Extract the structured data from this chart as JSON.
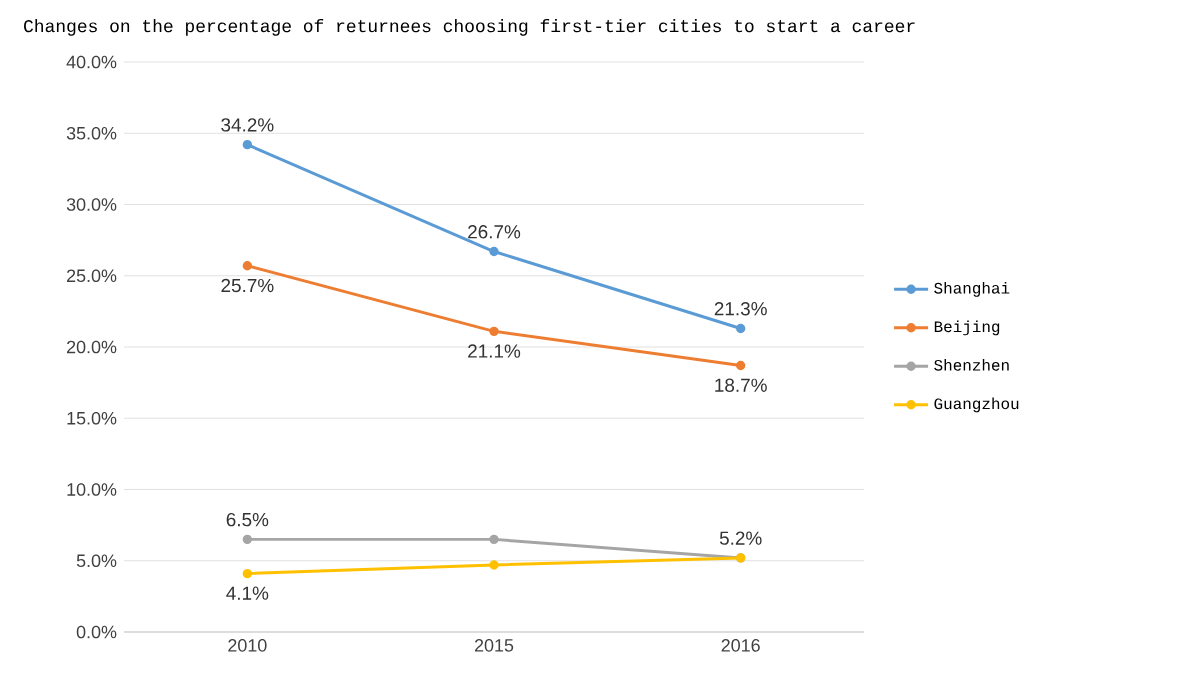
{
  "chart_data": {
    "type": "line",
    "title": "Changes on the percentage of returnees choosing first-tier cities to start a career",
    "categories": [
      "2010",
      "2015",
      "2016"
    ],
    "series": [
      {
        "name": "Shanghai",
        "color": "#5b9bd5",
        "values": [
          34.2,
          26.7,
          21.3
        ],
        "value_labels": [
          "34.2%",
          "26.7%",
          "21.3%"
        ]
      },
      {
        "name": "Beijing",
        "color": "#ed7d31",
        "values": [
          25.7,
          21.1,
          18.7
        ],
        "value_labels": [
          "25.7%",
          "21.1%",
          "18.7%"
        ]
      },
      {
        "name": "Shenzhen",
        "color": "#a5a5a5",
        "values": [
          6.5,
          6.5,
          5.2
        ],
        "value_labels": [
          "6.5%",
          null,
          "5.2%"
        ]
      },
      {
        "name": "Guangzhou",
        "color": "#ffc000",
        "values": [
          4.1,
          4.7,
          5.2
        ],
        "value_labels": [
          "4.1%",
          null,
          null
        ]
      }
    ],
    "ylim": [
      0,
      40
    ],
    "yticks": [
      {
        "value": 0,
        "label": "0.0%"
      },
      {
        "value": 5,
        "label": "5.0%"
      },
      {
        "value": 10,
        "label": "10.0%"
      },
      {
        "value": 15,
        "label": "15.0%"
      },
      {
        "value": 20,
        "label": "20.0%"
      },
      {
        "value": 25,
        "label": "25.0%"
      },
      {
        "value": 30,
        "label": "30.0%"
      },
      {
        "value": 35,
        "label": "35.0%"
      },
      {
        "value": 40,
        "label": "40.0%"
      }
    ],
    "grid": "y",
    "legend": "right",
    "marker": "circle",
    "line_style": "solid"
  }
}
